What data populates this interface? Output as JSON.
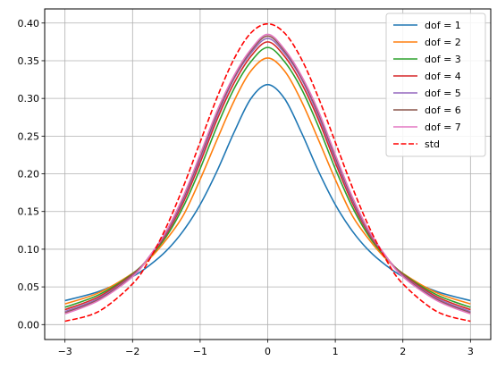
{
  "chart_data": {
    "type": "line",
    "title": "",
    "xlabel": "",
    "ylabel": "",
    "xlim": [
      -3.3,
      3.3
    ],
    "ylim": [
      -0.0198,
      0.4187
    ],
    "grid": true,
    "legend_position": "top-right",
    "x_ticks": [
      -3,
      -2,
      -1,
      0,
      1,
      2,
      3
    ],
    "x_tick_labels": [
      "−3",
      "−2",
      "−1",
      "0",
      "1",
      "2",
      "3"
    ],
    "y_ticks": [
      0.0,
      0.05,
      0.1,
      0.15,
      0.2,
      0.25,
      0.3,
      0.35,
      0.4
    ],
    "y_tick_labels": [
      "0.00",
      "0.05",
      "0.10",
      "0.15",
      "0.20",
      "0.25",
      "0.30",
      "0.35",
      "0.40"
    ],
    "x": [
      -3.0,
      -2.5,
      -2.0,
      -1.75,
      -1.5,
      -1.25,
      -1.0,
      -0.75,
      -0.5,
      -0.25,
      0.0,
      0.25,
      0.5,
      0.75,
      1.0,
      1.25,
      1.5,
      1.75,
      2.0,
      2.5,
      3.0
    ],
    "series": [
      {
        "name": "dof = 1",
        "color": "#1f77b4",
        "dashed": false,
        "values": [
          0.0318,
          0.0439,
          0.0637,
          0.0786,
          0.0979,
          0.1243,
          0.1592,
          0.2037,
          0.2546,
          0.2996,
          0.3183,
          0.2996,
          0.2546,
          0.2037,
          0.1592,
          0.1243,
          0.0979,
          0.0786,
          0.0637,
          0.0439,
          0.0318
        ]
      },
      {
        "name": "dof = 2",
        "color": "#ff7f0e",
        "dashed": false,
        "values": [
          0.0274,
          0.0422,
          0.068,
          0.0872,
          0.1128,
          0.1448,
          0.1925,
          0.2453,
          0.2962,
          0.3363,
          0.3536,
          0.3363,
          0.2962,
          0.2453,
          0.1925,
          0.1448,
          0.1128,
          0.0872,
          0.068,
          0.0422,
          0.0274
        ]
      },
      {
        "name": "dof = 3",
        "color": "#2ca02c",
        "dashed": false,
        "values": [
          0.023,
          0.0395,
          0.0675,
          0.089,
          0.1169,
          0.1563,
          0.2067,
          0.263,
          0.3125,
          0.3486,
          0.3676,
          0.3486,
          0.3125,
          0.263,
          0.2067,
          0.1563,
          0.1169,
          0.089,
          0.0675,
          0.0395,
          0.023
        ]
      },
      {
        "name": "dof = 4",
        "color": "#d62728",
        "dashed": false,
        "values": [
          0.0198,
          0.037,
          0.0664,
          0.0899,
          0.12,
          0.1618,
          0.2147,
          0.2718,
          0.32,
          0.3557,
          0.375,
          0.3557,
          0.32,
          0.2718,
          0.2147,
          0.1618,
          0.12,
          0.0899,
          0.0664,
          0.037,
          0.0198
        ]
      },
      {
        "name": "dof = 5",
        "color": "#9467bd",
        "dashed": false,
        "values": [
          0.0173,
          0.0349,
          0.0653,
          0.0903,
          0.122,
          0.1655,
          0.2197,
          0.277,
          0.3257,
          0.3599,
          0.3796,
          0.3599,
          0.3257,
          0.277,
          0.2197,
          0.1655,
          0.122,
          0.0903,
          0.0653,
          0.0349,
          0.0173
        ]
      },
      {
        "name": "dof = 6",
        "color": "#8c564b",
        "dashed": false,
        "values": [
          0.0155,
          0.0333,
          0.0643,
          0.0905,
          0.1233,
          0.168,
          0.2231,
          0.2806,
          0.3279,
          0.3628,
          0.3827,
          0.3628,
          0.3279,
          0.2806,
          0.2231,
          0.168,
          0.1233,
          0.0905,
          0.0643,
          0.0333,
          0.0155
        ]
      },
      {
        "name": "dof = 7",
        "color": "#e377c2",
        "dashed": false,
        "values": [
          0.0142,
          0.032,
          0.0635,
          0.0906,
          0.1243,
          0.1699,
          0.2256,
          0.2833,
          0.3299,
          0.3649,
          0.385,
          0.3649,
          0.3299,
          0.2833,
          0.2256,
          0.1699,
          0.1243,
          0.0906,
          0.0635,
          0.032,
          0.0142
        ]
      },
      {
        "name": "std",
        "color": "#ff0000",
        "dashed": true,
        "values": [
          0.0044,
          0.0175,
          0.054,
          0.0863,
          0.1295,
          0.1826,
          0.242,
          0.3011,
          0.3521,
          0.3867,
          0.3989,
          0.3867,
          0.3521,
          0.3011,
          0.242,
          0.1826,
          0.1295,
          0.0863,
          0.054,
          0.0175,
          0.0044
        ]
      }
    ]
  }
}
